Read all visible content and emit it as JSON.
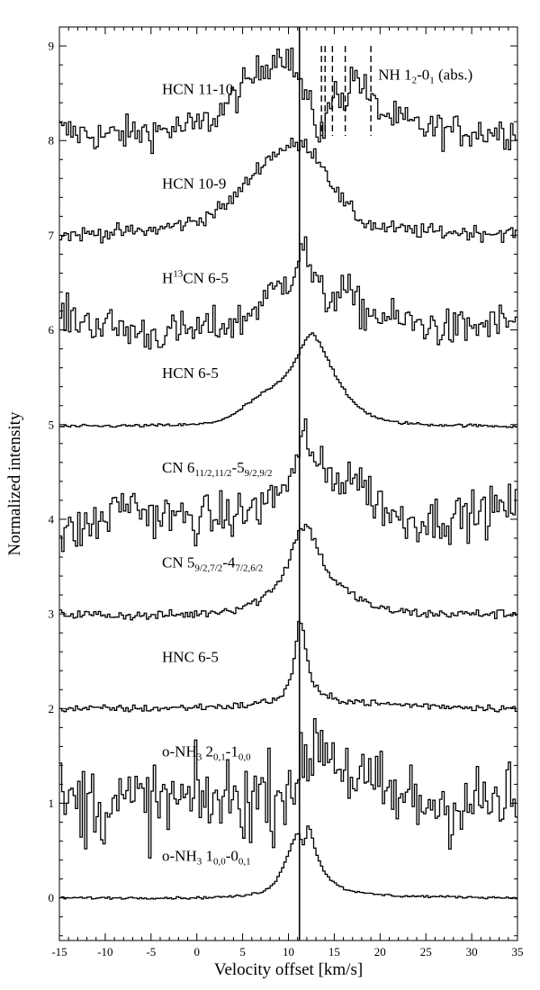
{
  "chart_data": {
    "type": "line",
    "xlabel": "Velocity offset [km/s]",
    "ylabel": "Normalized intensity",
    "xlim": [
      -15,
      35
    ],
    "ylim": [
      -0.45,
      9.2
    ],
    "x_ticks": [
      -15,
      -10,
      -5,
      0,
      5,
      10,
      15,
      20,
      25,
      30,
      35
    ],
    "x_tick_labels": [
      "-15",
      "-10",
      "-5",
      "0",
      "5",
      "10",
      "15",
      "20",
      "25",
      "30",
      "35"
    ],
    "y_ticks": [
      0,
      1,
      2,
      3,
      4,
      5,
      6,
      7,
      8,
      9
    ],
    "y_tick_labels": [
      "0",
      "1",
      "2",
      "3",
      "4",
      "5",
      "6",
      "7",
      "8",
      "9"
    ],
    "reference_velocity": 11.2,
    "nh_absorption": {
      "label": "NH 1",
      "label_sub": "2",
      "label_mid": "-0",
      "label_sub2": "1",
      "label_tail": " (abs.)",
      "velocities": [
        13.6,
        14.0,
        14.8,
        16.2,
        19.0
      ]
    },
    "series": [
      {
        "id": "hcn-11-10",
        "offset": 8,
        "label": {
          "parts": [
            {
              "t": "HCN 11-10"
            }
          ]
        },
        "label_pos": [
          -3.8,
          8.55
        ],
        "noise": 0.09,
        "profile": [
          [
            -15,
            0.1
          ],
          [
            -10,
            0.05
          ],
          [
            -5,
            0.1
          ],
          [
            0,
            0.15
          ],
          [
            2,
            0.25
          ],
          [
            4,
            0.45
          ],
          [
            6,
            0.65
          ],
          [
            8,
            0.85
          ],
          [
            9.5,
            0.95
          ],
          [
            10.5,
            0.8
          ],
          [
            11.5,
            0.55
          ],
          [
            12.5,
            0.3
          ],
          [
            13.3,
            0.1
          ],
          [
            14.0,
            0.15
          ],
          [
            14.8,
            0.45
          ],
          [
            15.5,
            0.55
          ],
          [
            16.2,
            0.4
          ],
          [
            16.8,
            0.65
          ],
          [
            17.5,
            0.7
          ],
          [
            18.5,
            0.5
          ],
          [
            19.5,
            0.35
          ],
          [
            21,
            0.25
          ],
          [
            24,
            0.15
          ],
          [
            28,
            0.1
          ],
          [
            35,
            0.1
          ]
        ]
      },
      {
        "id": "hcn-10-9",
        "offset": 7,
        "label": {
          "parts": [
            {
              "t": "HCN 10-9"
            }
          ]
        },
        "label_pos": [
          -3.8,
          7.55
        ],
        "noise": 0.04,
        "profile": [
          [
            -15,
            0.0
          ],
          [
            -5,
            0.05
          ],
          [
            0,
            0.15
          ],
          [
            3,
            0.3
          ],
          [
            5,
            0.5
          ],
          [
            7,
            0.75
          ],
          [
            9,
            0.9
          ],
          [
            10.5,
            0.95
          ],
          [
            12,
            0.95
          ],
          [
            13,
            0.85
          ],
          [
            14,
            0.7
          ],
          [
            15,
            0.5
          ],
          [
            16,
            0.35
          ],
          [
            17,
            0.25
          ],
          [
            18,
            0.15
          ],
          [
            20,
            0.08
          ],
          [
            25,
            0.04
          ],
          [
            35,
            0.02
          ]
        ]
      },
      {
        "id": "h13cn-6-5",
        "offset": 6,
        "label": {
          "parts": [
            {
              "t": "H"
            },
            {
              "t": "13",
              "sup": true
            },
            {
              "t": "CN 6-5"
            }
          ]
        },
        "label_pos": [
          -3.8,
          6.55
        ],
        "noise": 0.1,
        "profile": [
          [
            -15,
            0.15
          ],
          [
            -5,
            -0.05
          ],
          [
            0,
            0.0
          ],
          [
            3,
            0.05
          ],
          [
            5,
            0.1
          ],
          [
            7,
            0.3
          ],
          [
            9,
            0.45
          ],
          [
            10.5,
            0.6
          ],
          [
            11.5,
            0.95
          ],
          [
            12.5,
            0.6
          ],
          [
            14,
            0.3
          ],
          [
            16,
            0.45
          ],
          [
            18,
            0.2
          ],
          [
            22,
            0.1
          ],
          [
            28,
            0.0
          ],
          [
            35,
            0.1
          ]
        ]
      },
      {
        "id": "hcn-6-5",
        "offset": 5,
        "label": {
          "parts": [
            {
              "t": "HCN 6-5"
            }
          ]
        },
        "label_pos": [
          -3.8,
          5.55
        ],
        "noise": 0.008,
        "profile": [
          [
            -15,
            -0.02
          ],
          [
            -5,
            -0.01
          ],
          [
            0,
            0.0
          ],
          [
            2,
            0.03
          ],
          [
            4,
            0.1
          ],
          [
            5,
            0.18
          ],
          [
            6,
            0.25
          ],
          [
            7,
            0.32
          ],
          [
            8,
            0.38
          ],
          [
            9,
            0.45
          ],
          [
            10,
            0.55
          ],
          [
            11,
            0.72
          ],
          [
            12,
            0.93
          ],
          [
            12.7,
            0.97
          ],
          [
            13.5,
            0.85
          ],
          [
            14.5,
            0.65
          ],
          [
            15.5,
            0.45
          ],
          [
            16.5,
            0.3
          ],
          [
            17.5,
            0.2
          ],
          [
            19,
            0.1
          ],
          [
            21,
            0.03
          ],
          [
            25,
            0.0
          ],
          [
            35,
            -0.02
          ]
        ]
      },
      {
        "id": "cn-6-5",
        "offset": 4,
        "label": {
          "parts": [
            {
              "t": "CN 6"
            },
            {
              "t": "11/2,11/2",
              "sub": true
            },
            {
              "t": "-5"
            },
            {
              "t": "9/2,9/2",
              "sub": true
            }
          ]
        },
        "label_pos": [
          -3.8,
          4.55
        ],
        "noise": 0.12,
        "profile": [
          [
            -15,
            -0.2
          ],
          [
            -10,
            0.0
          ],
          [
            -8,
            0.2
          ],
          [
            -5,
            0.05
          ],
          [
            0,
            0.0
          ],
          [
            5,
            0.05
          ],
          [
            8,
            0.2
          ],
          [
            10,
            0.4
          ],
          [
            11,
            0.6
          ],
          [
            12,
            0.95
          ],
          [
            13,
            0.55
          ],
          [
            15,
            0.4
          ],
          [
            17,
            0.5
          ],
          [
            19,
            0.25
          ],
          [
            22,
            0.0
          ],
          [
            26,
            0.0
          ],
          [
            30,
            0.05
          ],
          [
            35,
            0.15
          ]
        ]
      },
      {
        "id": "cn-5-4",
        "offset": 3,
        "label": {
          "parts": [
            {
              "t": "CN 5"
            },
            {
              "t": "9/2,7/2",
              "sub": true
            },
            {
              "t": "-4"
            },
            {
              "t": "7/2,6/2",
              "sub": true
            }
          ]
        },
        "label_pos": [
          -3.8,
          3.55
        ],
        "noise": 0.025,
        "profile": [
          [
            -15,
            0.0
          ],
          [
            -5,
            -0.02
          ],
          [
            0,
            0.0
          ],
          [
            4,
            0.05
          ],
          [
            7,
            0.15
          ],
          [
            9,
            0.35
          ],
          [
            10,
            0.55
          ],
          [
            11,
            0.85
          ],
          [
            12,
            0.95
          ],
          [
            13,
            0.75
          ],
          [
            14,
            0.5
          ],
          [
            15,
            0.35
          ],
          [
            17,
            0.2
          ],
          [
            20,
            0.05
          ],
          [
            25,
            0.0
          ],
          [
            35,
            0.0
          ]
        ]
      },
      {
        "id": "hnc-6-5",
        "offset": 2,
        "label": {
          "parts": [
            {
              "t": "HNC 6-5"
            }
          ]
        },
        "label_pos": [
          -3.8,
          2.55
        ],
        "noise": 0.02,
        "profile": [
          [
            -15,
            0.0
          ],
          [
            -5,
            0.0
          ],
          [
            5,
            0.03
          ],
          [
            8,
            0.08
          ],
          [
            9.5,
            0.15
          ],
          [
            10.5,
            0.4
          ],
          [
            11.2,
            1.0
          ],
          [
            11.8,
            0.7
          ],
          [
            12.5,
            0.3
          ],
          [
            13.5,
            0.15
          ],
          [
            15,
            0.1
          ],
          [
            20,
            0.05
          ],
          [
            25,
            0.03
          ],
          [
            35,
            0.0
          ]
        ]
      },
      {
        "id": "o-nh3-2-1",
        "offset": 1,
        "label": {
          "parts": [
            {
              "t": "o-NH"
            },
            {
              "t": "3",
              "sub": true
            },
            {
              "t": " 2"
            },
            {
              "t": "0,1",
              "sub": true
            },
            {
              "t": "-1"
            },
            {
              "t": "0,0",
              "sub": true
            }
          ]
        },
        "label_pos": [
          -3.8,
          1.55
        ],
        "noise": 0.22,
        "profile": [
          [
            -15,
            0.0
          ],
          [
            -5,
            0.0
          ],
          [
            5,
            0.05
          ],
          [
            9,
            0.1
          ],
          [
            10.5,
            0.3
          ],
          [
            11.5,
            0.2
          ],
          [
            12.5,
            0.6
          ],
          [
            13.5,
            0.7
          ],
          [
            15,
            0.5
          ],
          [
            17,
            0.3
          ],
          [
            20,
            0.1
          ],
          [
            25,
            0.0
          ],
          [
            35,
            0.0
          ]
        ]
      },
      {
        "id": "o-nh3-1-0",
        "offset": 0,
        "label": {
          "parts": [
            {
              "t": "o-NH"
            },
            {
              "t": "3",
              "sub": true
            },
            {
              "t": " 1"
            },
            {
              "t": "0,0",
              "sub": true
            },
            {
              "t": "-0"
            },
            {
              "t": "0,1",
              "sub": true
            }
          ]
        },
        "label_pos": [
          -3.8,
          0.45
        ],
        "noise": 0.006,
        "profile": [
          [
            -15,
            0.0
          ],
          [
            -5,
            0.0
          ],
          [
            0,
            0.0
          ],
          [
            5,
            0.02
          ],
          [
            7,
            0.06
          ],
          [
            8.5,
            0.15
          ],
          [
            9.5,
            0.35
          ],
          [
            10.5,
            0.6
          ],
          [
            11,
            0.7
          ],
          [
            11.7,
            0.55
          ],
          [
            12.2,
            0.8
          ],
          [
            12.8,
            0.55
          ],
          [
            13.5,
            0.35
          ],
          [
            14.5,
            0.2
          ],
          [
            16,
            0.1
          ],
          [
            18,
            0.05
          ],
          [
            22,
            0.02
          ],
          [
            35,
            0.0
          ]
        ]
      }
    ]
  }
}
